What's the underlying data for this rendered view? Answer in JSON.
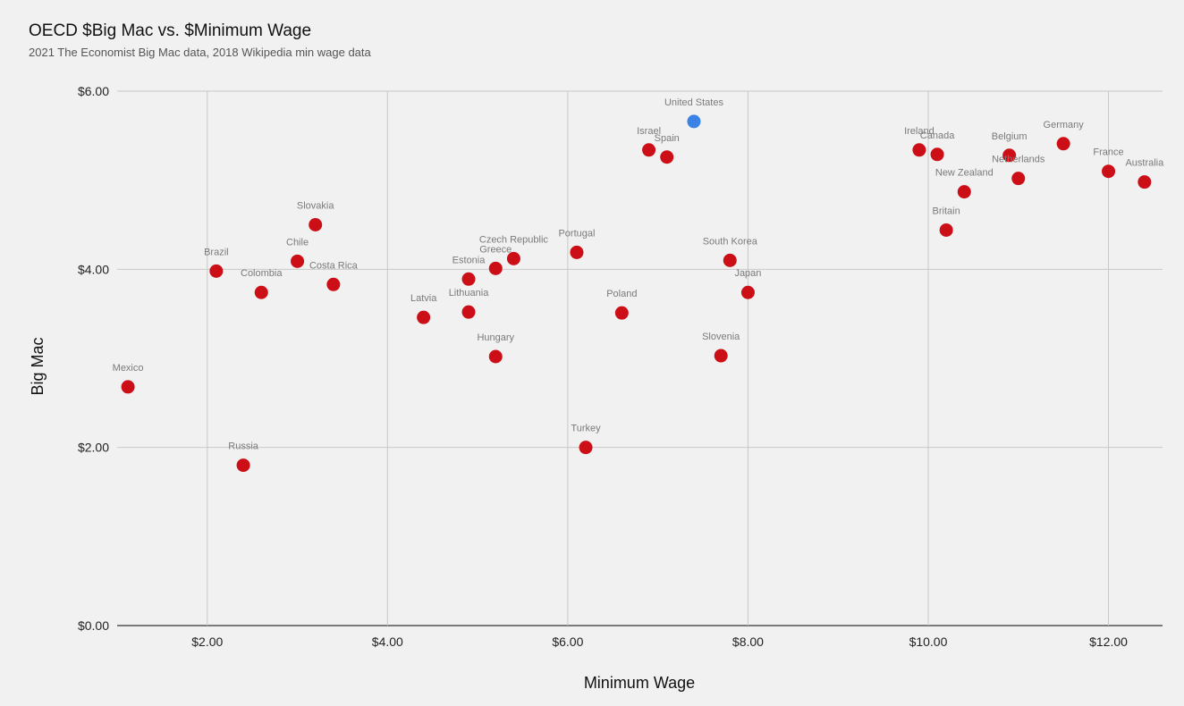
{
  "chart_data": {
    "type": "scatter",
    "title": "OECD $Big Mac vs. $Minimum Wage",
    "subtitle": "2021 The Economist Big Mac data, 2018 Wikipedia min wage data",
    "xlabel": "Minimum Wage",
    "ylabel": "Big Mac",
    "xlim": [
      1.0,
      12.6
    ],
    "ylim": [
      0,
      6
    ],
    "x_ticks": [
      2,
      4,
      6,
      8,
      10,
      12
    ],
    "x_tick_labels": [
      "$2.00",
      "$4.00",
      "$6.00",
      "$8.00",
      "$10.00",
      "$12.00"
    ],
    "y_ticks": [
      0,
      2,
      4,
      6
    ],
    "y_tick_labels": [
      "$0.00",
      "$2.00",
      "$4.00",
      "$6.00"
    ],
    "grid": true,
    "colors": {
      "default": "#cc0e16",
      "highlight": "#3b82e6",
      "label": "#7a7a7a"
    },
    "points": [
      {
        "label": "Mexico",
        "x": 1.12,
        "y": 2.68
      },
      {
        "label": "Brazil",
        "x": 2.1,
        "y": 3.98
      },
      {
        "label": "Russia",
        "x": 2.4,
        "y": 1.8
      },
      {
        "label": "Colombia",
        "x": 2.6,
        "y": 3.74
      },
      {
        "label": "Chile",
        "x": 3.0,
        "y": 4.09
      },
      {
        "label": "Slovakia",
        "x": 3.2,
        "y": 4.5
      },
      {
        "label": "Costa Rica",
        "x": 3.4,
        "y": 3.83
      },
      {
        "label": "Latvia",
        "x": 4.4,
        "y": 3.46
      },
      {
        "label": "Estonia",
        "x": 4.9,
        "y": 3.89
      },
      {
        "label": "Lithuania",
        "x": 4.9,
        "y": 3.52
      },
      {
        "label": "Greece",
        "x": 5.2,
        "y": 4.01
      },
      {
        "label": "Hungary",
        "x": 5.2,
        "y": 3.02
      },
      {
        "label": "Czech Republic",
        "x": 5.4,
        "y": 4.12
      },
      {
        "label": "Portugal",
        "x": 6.1,
        "y": 4.19
      },
      {
        "label": "Turkey",
        "x": 6.2,
        "y": 2.0
      },
      {
        "label": "Poland",
        "x": 6.6,
        "y": 3.51
      },
      {
        "label": "Israel",
        "x": 6.9,
        "y": 5.34
      },
      {
        "label": "Spain",
        "x": 7.1,
        "y": 5.26
      },
      {
        "label": "United States",
        "x": 7.4,
        "y": 5.66,
        "highlight": true
      },
      {
        "label": "Slovenia",
        "x": 7.7,
        "y": 3.03
      },
      {
        "label": "South Korea",
        "x": 7.8,
        "y": 4.1
      },
      {
        "label": "Japan",
        "x": 8.0,
        "y": 3.74
      },
      {
        "label": "Ireland",
        "x": 9.9,
        "y": 5.34
      },
      {
        "label": "Canada",
        "x": 10.1,
        "y": 5.29
      },
      {
        "label": "Britain",
        "x": 10.2,
        "y": 4.44
      },
      {
        "label": "New Zealand",
        "x": 10.4,
        "y": 4.87
      },
      {
        "label": "Belgium",
        "x": 10.9,
        "y": 5.28
      },
      {
        "label": "Netherlands",
        "x": 11.0,
        "y": 5.02
      },
      {
        "label": "Germany",
        "x": 11.5,
        "y": 5.41
      },
      {
        "label": "France",
        "x": 12.0,
        "y": 5.1
      },
      {
        "label": "Australia",
        "x": 12.4,
        "y": 4.98
      }
    ]
  }
}
